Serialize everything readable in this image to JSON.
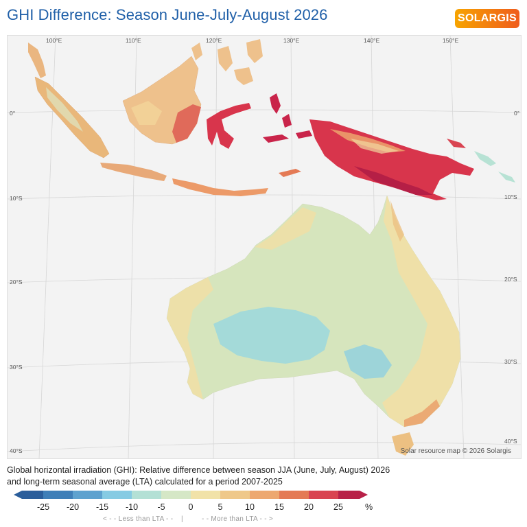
{
  "title": "GHI Difference: Season June-July-August 2026",
  "logo": {
    "text": "SOLARGIS"
  },
  "map": {
    "longitude_labels": [
      "100°E",
      "110°E",
      "120°E",
      "130°E",
      "140°E",
      "150°E"
    ],
    "latitude_labels": [
      "0°",
      "10°S",
      "20°S",
      "30°S",
      "40°S"
    ],
    "credit": "Solar resource map © 2026 Solargis"
  },
  "caption": {
    "line1": "Global horizontal irradiation (GHI): Relative difference between season JJA (June, July, August) 2026",
    "line2": "and long-term seasonal average (LTA) calculated for a period 2007-2025"
  },
  "legend": {
    "ticks": [
      "-25",
      "-20",
      "-15",
      "-10",
      "-5",
      "0",
      "5",
      "10",
      "15",
      "20",
      "25"
    ],
    "unit": "%",
    "less": "< - -  Less than LTA - -",
    "separator": "|",
    "more": "- -  More than LTA - - >",
    "colors": [
      "#2b5e9b",
      "#3f7fb8",
      "#5ea2cf",
      "#86cbe3",
      "#b3e0d5",
      "#d5e7c6",
      "#f1e2a8",
      "#efc88a",
      "#eda870",
      "#e47a55",
      "#d94451",
      "#b82148"
    ]
  }
}
